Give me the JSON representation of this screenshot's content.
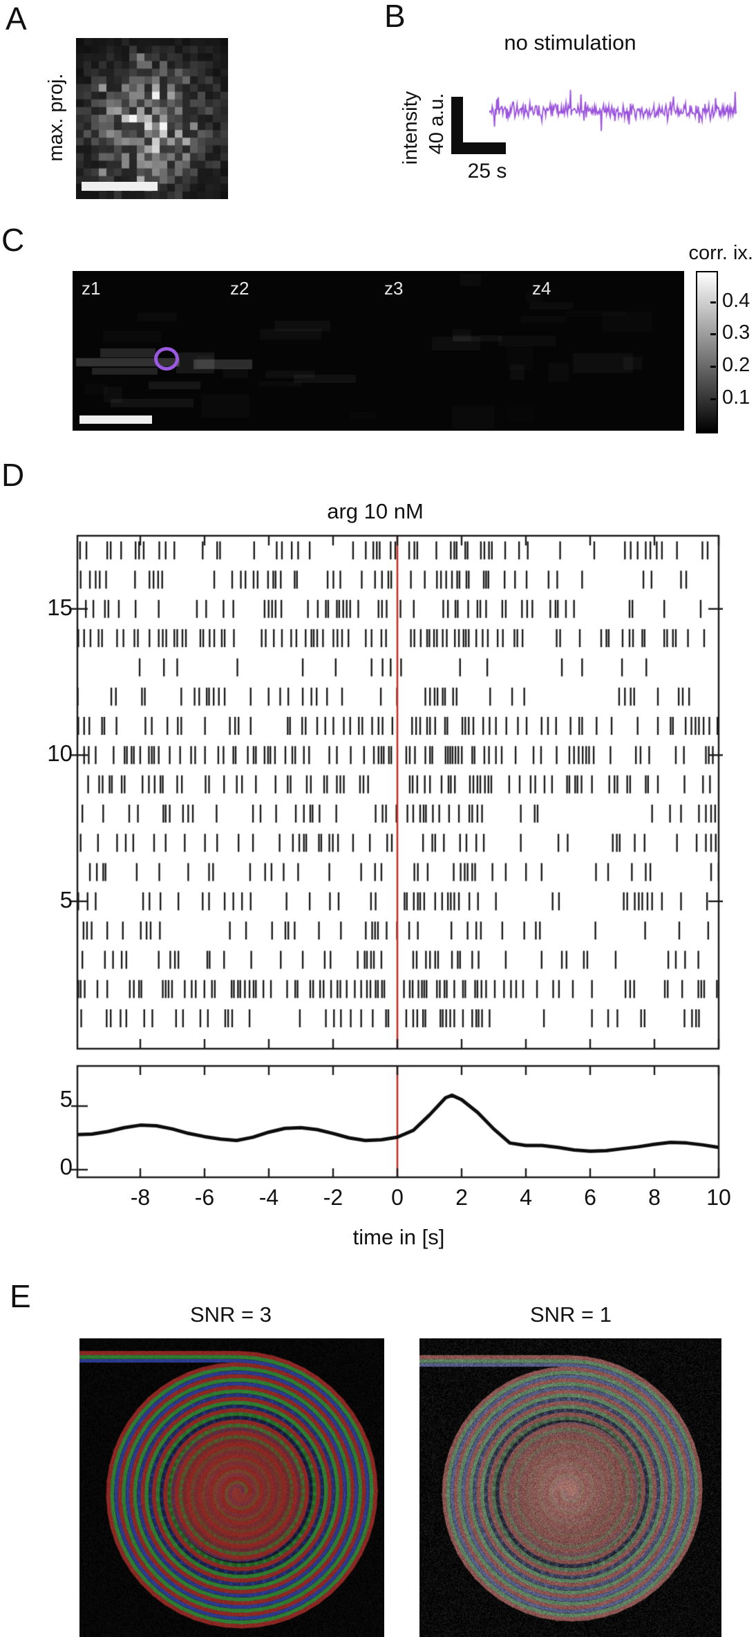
{
  "panels": {
    "A": {
      "label": "A",
      "side_label": "max. proj."
    },
    "B": {
      "label": "B",
      "title": "no stimulation",
      "ylabel": "intensity",
      "yscale_label": "40 a.u.",
      "xscale_label": "25 s"
    },
    "C": {
      "label": "C",
      "z_labels": [
        "z1",
        "z2",
        "z3",
        "z4"
      ],
      "colorbar_title": "corr. ix.",
      "colorbar_ticks": [
        "0.4",
        "0.3",
        "0.2",
        "0.1"
      ]
    },
    "D": {
      "label": "D",
      "title": "arg 10 nM",
      "xlabel": "time in [s]",
      "raster_y_tick_labels": [
        "15",
        "10",
        "5"
      ],
      "psth_y_tick_labels": [
        "5",
        "0"
      ]
    },
    "E": {
      "label": "E",
      "title_left": "SNR = 3",
      "title_right": "SNR = 1"
    }
  },
  "colors": {
    "trace_purple": "#9b54dc",
    "roi_purple": "#9b59e0",
    "stim_red": "#c2302a",
    "spike_black": "#1a1a1a",
    "scalebar_white": "#efefef"
  },
  "render": {
    "panelA_seed": 7,
    "panelC_seed": 5,
    "spiral_seeds": [
      31,
      37
    ]
  },
  "chart_data": [
    {
      "panel": "A",
      "type": "image",
      "description": "maximum projection fluorescence image, ~20x21 blocky gray pixels, bright blobs near center, white scale bar bottom left"
    },
    {
      "panel": "B",
      "type": "line",
      "title": "no stimulation",
      "series": [
        {
          "name": "ROI intensity",
          "description": "stationary noisy baseline, no stimulus response",
          "n_points": 330,
          "noise_seed": 11
        }
      ],
      "scale_bars": {
        "vertical": "40 a.u.",
        "horizontal": "25 s"
      },
      "line_color": "#9b54dc"
    },
    {
      "panel": "C",
      "type": "image",
      "description": "correlation-index maps at four z planes (z1..z4), nearly black, faint gray patches in z1, purple ROI circle in z1, white scale bar",
      "colorbar": {
        "title": "corr. ix.",
        "tick_values": [
          0.4,
          0.3,
          0.2,
          0.1
        ],
        "range": [
          0,
          0.5
        ],
        "gradient": "white(top) to black(bottom)"
      }
    },
    {
      "panel": "D",
      "type": "raster",
      "title": "arg 10 nM",
      "xlabel": "time in [s]",
      "xlim": [
        -10,
        10
      ],
      "x_ticks": [
        -8,
        -6,
        -4,
        -2,
        0,
        2,
        4,
        6,
        8,
        10
      ],
      "y_ticks": [
        5,
        10,
        15
      ],
      "n_trials": 17,
      "stimulus_time_s": 0,
      "seed": 23,
      "trial_rates_hz_bottom_to_top": [
        [
          2.0,
          3.0
        ],
        [
          3.9,
          1.8
        ],
        [
          2.2,
          2.6
        ],
        [
          2.6,
          1.3
        ],
        [
          2.9,
          2.0
        ],
        [
          2.7,
          2.2
        ],
        [
          2.1,
          2.0
        ],
        [
          2.7,
          2.2
        ],
        [
          3.9,
          1.6
        ],
        [
          5.1,
          1.8
        ],
        [
          3.9,
          1.8
        ],
        [
          2.4,
          1.5
        ],
        [
          0.8,
          2.4
        ],
        [
          4.8,
          1.5
        ],
        [
          2.7,
          1.9
        ],
        [
          3.3,
          2.2
        ],
        [
          3.3,
          2.0
        ]
      ],
      "burst_window_s": [
        0.35,
        2.9
      ],
      "post_burst_suppression": {
        "window_s": [
          3.4,
          7.2
        ],
        "factor": 0.55
      }
    },
    {
      "panel": "D",
      "type": "line",
      "name": "mean rate (PSTH)",
      "xlim": [
        -10,
        10
      ],
      "ylim": [
        0,
        8
      ],
      "y_ticks": [
        0,
        5
      ],
      "stim_line_x": 0,
      "points": [
        [
          -10,
          2.75
        ],
        [
          -9.5,
          2.8
        ],
        [
          -9,
          3.0
        ],
        [
          -8.5,
          3.3
        ],
        [
          -8,
          3.5
        ],
        [
          -7.5,
          3.45
        ],
        [
          -7,
          3.2
        ],
        [
          -6.5,
          2.85
        ],
        [
          -6,
          2.6
        ],
        [
          -5.5,
          2.4
        ],
        [
          -5,
          2.3
        ],
        [
          -4.5,
          2.55
        ],
        [
          -4,
          2.95
        ],
        [
          -3.5,
          3.25
        ],
        [
          -3,
          3.3
        ],
        [
          -2.5,
          3.15
        ],
        [
          -2,
          2.85
        ],
        [
          -1.5,
          2.5
        ],
        [
          -1,
          2.3
        ],
        [
          -0.5,
          2.35
        ],
        [
          0,
          2.55
        ],
        [
          0.5,
          3.1
        ],
        [
          1,
          4.3
        ],
        [
          1.5,
          5.65
        ],
        [
          1.7,
          5.85
        ],
        [
          2,
          5.5
        ],
        [
          2.5,
          4.5
        ],
        [
          3,
          3.2
        ],
        [
          3.5,
          2.1
        ],
        [
          4,
          1.9
        ],
        [
          4.5,
          1.9
        ],
        [
          5,
          1.75
        ],
        [
          5.5,
          1.55
        ],
        [
          6,
          1.45
        ],
        [
          6.5,
          1.5
        ],
        [
          7,
          1.65
        ],
        [
          7.5,
          1.8
        ],
        [
          8,
          2.0
        ],
        [
          8.5,
          2.15
        ],
        [
          9,
          2.1
        ],
        [
          9.5,
          1.95
        ],
        [
          10,
          1.75
        ]
      ]
    },
    {
      "panel": "E",
      "type": "image-pair",
      "titles": [
        "SNR = 3",
        "SNR = 1"
      ],
      "description": "rolled RGB-striped spiral phantom on black; straight striped tail entering from top-left; left image clean (SNR=3), right image heavily noise-corrupted (SNR=1)"
    }
  ]
}
